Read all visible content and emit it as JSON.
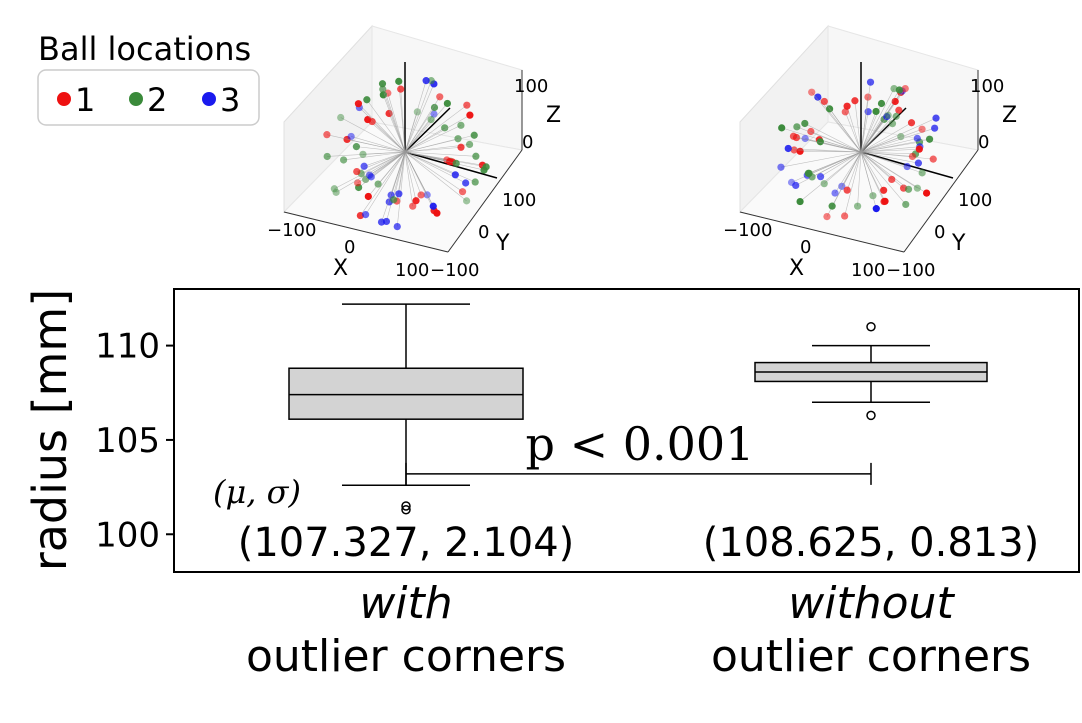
{
  "legend": {
    "title": "Ball locations",
    "entries": [
      {
        "label": "1",
        "color": "#ee1111"
      },
      {
        "label": "2",
        "color": "#3a8a3a"
      },
      {
        "label": "3",
        "color": "#1a1aee"
      }
    ]
  },
  "scatter3d": {
    "panels": [
      {
        "id": "left"
      },
      {
        "id": "right"
      }
    ],
    "axis_labels": {
      "x": "X",
      "y": "Y",
      "z": "Z"
    },
    "x_ticks": [
      "−100",
      "0",
      "100"
    ],
    "y_ticks": [
      "−100",
      "0",
      "100"
    ],
    "z_ticks": [
      "0",
      "100"
    ]
  },
  "chart_data": {
    "type": "box",
    "ylabel": "radius [mm]",
    "ylim": [
      98,
      113
    ],
    "yticks": [
      100,
      105,
      110
    ],
    "categories": [
      {
        "line1": "with",
        "line2": "outlier corners"
      },
      {
        "line1": "without",
        "line2": "outlier corners"
      }
    ],
    "boxes": [
      {
        "whisker_low": 102.6,
        "q1": 106.1,
        "median": 107.4,
        "q3": 108.8,
        "whisker_high": 112.2,
        "outliers": [
          101.3,
          101.5
        ],
        "stats": "(107.327, 2.104)"
      },
      {
        "whisker_low": 107.0,
        "q1": 108.1,
        "median": 108.6,
        "q3": 109.1,
        "whisker_high": 110.0,
        "outliers": [
          106.3,
          111.0
        ],
        "stats": "(108.625, 0.813)"
      }
    ],
    "stats_label": "(μ, σ)",
    "significance": {
      "text": "p < 0.001",
      "level": 103.2
    }
  }
}
